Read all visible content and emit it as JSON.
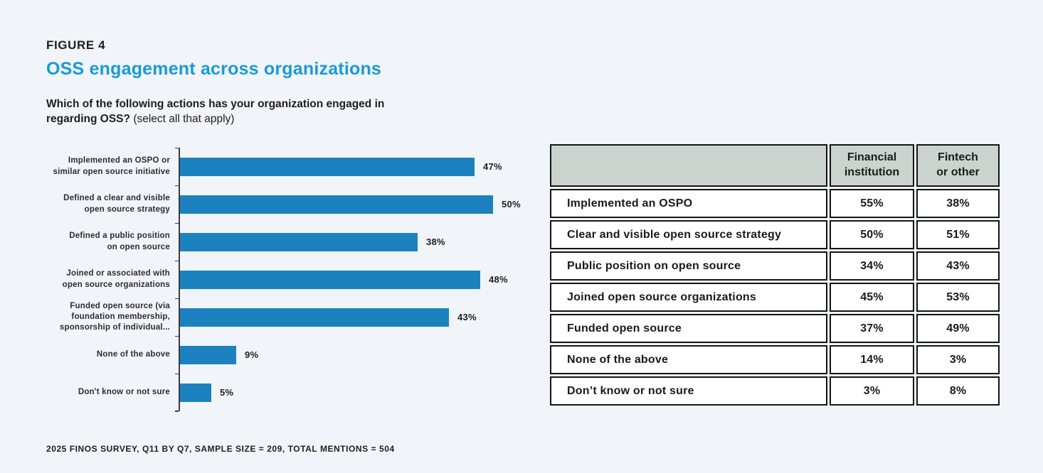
{
  "page": {
    "figure_label": "FIGURE 4",
    "title": "OSS engagement across organizations",
    "question_bold": "Which of the following actions has your organization engaged in regarding OSS?",
    "question_note": "(select all that apply)",
    "footnote": "2025 FINOS SURVEY, Q11 BY Q7, SAMPLE SIZE = 209, TOTAL MENTIONS = 504"
  },
  "colors": {
    "background": "#f1f4f9",
    "accent_blue": "#199ad6",
    "bar_blue": "#1c82bf",
    "axis": "#3c3c46",
    "table_header_bg": "#cbd3cf",
    "table_border": "#151515",
    "text_dark": "#1e1e1c"
  },
  "chart_data": [
    {
      "type": "bar",
      "orientation": "horizontal",
      "categories": [
        "Implemented an OSPO or\nsimilar open source initiative",
        "Defined a clear and visible\nopen source strategy",
        "Defined a public position\non open source",
        "Joined or associated with\nopen source organizations",
        "Funded open source (via\nfoundation membership,\nsponsorship of individual...",
        "None of the above",
        "Don't know or not sure"
      ],
      "values": [
        47,
        50,
        38,
        48,
        43,
        9,
        5
      ],
      "data_labels": [
        "47%",
        "50%",
        "38%",
        "48%",
        "43%",
        "9%",
        "5%"
      ],
      "xlim": [
        0,
        50
      ],
      "grid": false,
      "legend": false,
      "bar_color": "#1c82bf"
    },
    {
      "type": "table",
      "columns": [
        "",
        "Financial\ninstitution",
        "Fintech\nor other"
      ],
      "rows": [
        [
          "Implemented an OSPO",
          "55%",
          "38%"
        ],
        [
          "Clear and visible open source strategy",
          "50%",
          "51%"
        ],
        [
          "Public position on open source",
          "34%",
          "43%"
        ],
        [
          "Joined open source organizations",
          "45%",
          "53%"
        ],
        [
          "Funded open source",
          "37%",
          "49%"
        ],
        [
          "None of the above",
          "14%",
          "3%"
        ],
        [
          "Don’t know or not sure",
          "3%",
          "8%"
        ]
      ]
    }
  ]
}
